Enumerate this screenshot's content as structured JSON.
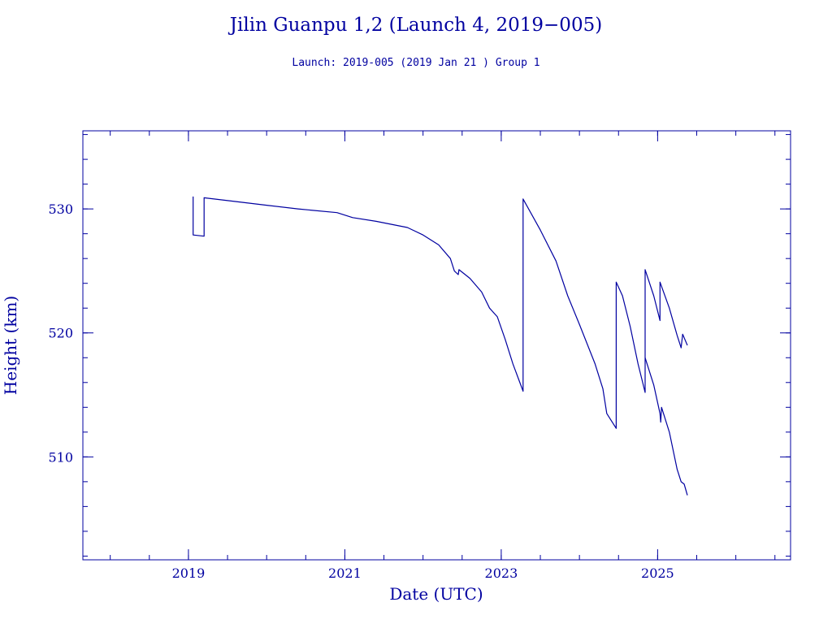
{
  "chart_data": {
    "type": "line",
    "title": "Jilin Guanpu 1,2 (Launch 4, 2019−005)",
    "subtitle": "Launch: 2019-005  (2019 Jan 21 )  Group 1",
    "xlabel": "Date (UTC)",
    "ylabel": "Height (km)",
    "xlim": [
      2017.65,
      2026.7
    ],
    "ylim": [
      501.7,
      536.3
    ],
    "x_ticks": [
      {
        "value": 2019,
        "label": "2019"
      },
      {
        "value": 2021,
        "label": "2021"
      },
      {
        "value": 2023,
        "label": "2023"
      },
      {
        "value": 2025,
        "label": "2025"
      }
    ],
    "y_ticks": [
      {
        "value": 510,
        "label": "510"
      },
      {
        "value": 520,
        "label": "520"
      },
      {
        "value": 530,
        "label": "530"
      }
    ],
    "x_minor_step": 0.5,
    "y_minor_step": 2,
    "grid": false,
    "line_color": "#0000a0",
    "series": [
      {
        "points": [
          [
            2019.06,
            531.0
          ],
          [
            2019.06,
            527.9
          ],
          [
            2019.2,
            527.8
          ],
          [
            2019.2,
            530.9
          ],
          [
            2019.6,
            530.6
          ],
          [
            2020.0,
            530.3
          ],
          [
            2020.4,
            530.0
          ],
          [
            2020.9,
            529.7
          ],
          [
            2021.1,
            529.3
          ],
          [
            2021.4,
            529.0
          ],
          [
            2021.8,
            528.5
          ],
          [
            2022.0,
            527.9
          ],
          [
            2022.2,
            527.1
          ],
          [
            2022.35,
            526.0
          ],
          [
            2022.4,
            525.0
          ],
          [
            2022.45,
            524.7
          ],
          [
            2022.46,
            525.1
          ],
          [
            2022.6,
            524.4
          ],
          [
            2022.75,
            523.3
          ],
          [
            2022.85,
            522.0
          ],
          [
            2022.95,
            521.3
          ],
          [
            2023.05,
            519.5
          ],
          [
            2023.15,
            517.5
          ],
          [
            2023.28,
            515.3
          ],
          [
            2023.28,
            530.8
          ],
          [
            2023.5,
            528.3
          ],
          [
            2023.7,
            525.8
          ],
          [
            2023.85,
            523.0
          ],
          [
            2024.0,
            520.7
          ],
          [
            2024.2,
            517.5
          ],
          [
            2024.3,
            515.5
          ],
          [
            2024.35,
            513.5
          ],
          [
            2024.47,
            512.3
          ],
          [
            2024.47,
            524.1
          ],
          [
            2024.55,
            523.0
          ],
          [
            2024.65,
            520.5
          ],
          [
            2024.75,
            517.5
          ],
          [
            2024.84,
            515.2
          ],
          [
            2024.84,
            525.1
          ],
          [
            2024.95,
            523.0
          ],
          [
            2025.03,
            521.0
          ],
          [
            2025.03,
            524.1
          ],
          [
            2025.15,
            522.0
          ],
          [
            2025.25,
            519.8
          ],
          [
            2025.3,
            518.8
          ],
          [
            2025.32,
            519.9
          ],
          [
            2025.38,
            519.0
          ]
        ]
      },
      {
        "points": [
          [
            2024.84,
            518.0
          ],
          [
            2024.95,
            515.8
          ],
          [
            2025.03,
            513.5
          ],
          [
            2025.04,
            512.8
          ],
          [
            2025.05,
            514.0
          ],
          [
            2025.15,
            512.0
          ],
          [
            2025.25,
            509.0
          ],
          [
            2025.3,
            508.0
          ],
          [
            2025.34,
            507.8
          ],
          [
            2025.38,
            506.9
          ]
        ]
      }
    ]
  }
}
